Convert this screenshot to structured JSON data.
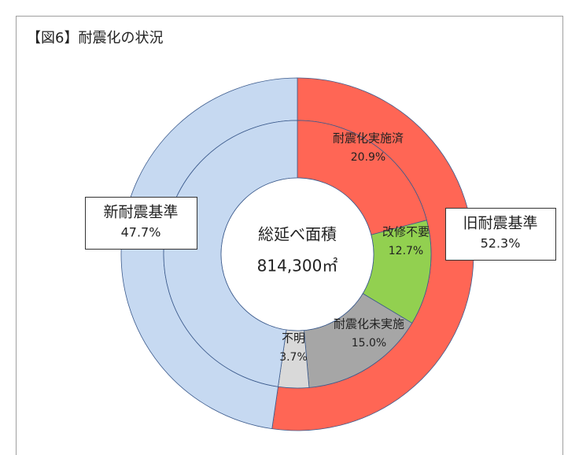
{
  "chart_data": {
    "type": "nested_donut",
    "title": "【図6】耐震化の状況",
    "center_label": [
      "総延べ面積",
      "814,300㎡"
    ],
    "outer": {
      "categories": [
        "旧耐震基準",
        "新耐震基準"
      ],
      "values": [
        52.3,
        47.7
      ],
      "value_labels": [
        "52.3%",
        "47.7%"
      ],
      "colors": [
        "#ff6655",
        "#c6d9f1"
      ]
    },
    "inner": {
      "categories": [
        "耐震化実施済",
        "改修不要",
        "耐震化未実施",
        "不明",
        null
      ],
      "values": [
        20.9,
        12.7,
        15.0,
        3.7,
        47.7
      ],
      "value_labels": [
        "20.9%",
        "12.7%",
        "15.0%",
        "3.7%",
        null
      ],
      "colors": [
        "#ff6655",
        "#92d050",
        "#a6a6a6",
        "#d9d9d9",
        "#c6d9f1"
      ]
    }
  }
}
